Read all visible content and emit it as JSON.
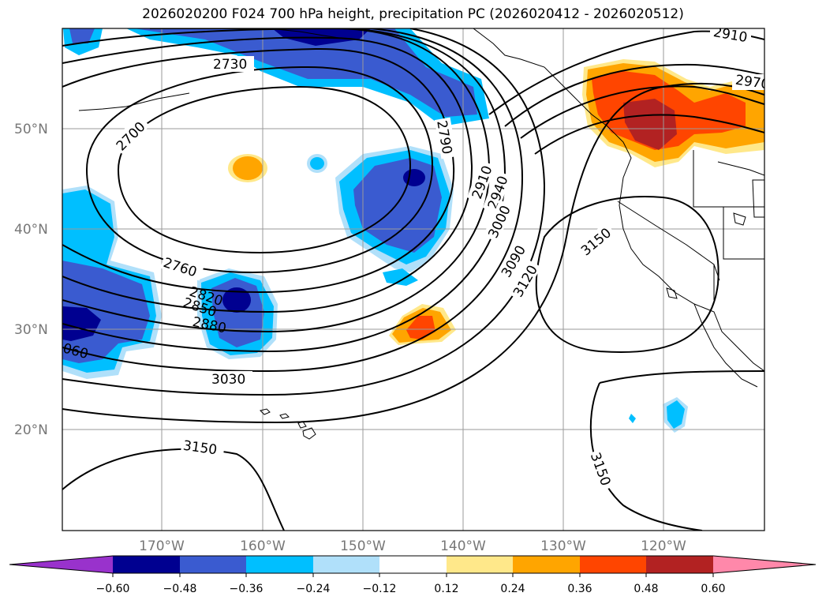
{
  "title": "2026020200 F024 700 hPa height, precipitation PC (2026020412 - 2026020512)",
  "map": {
    "lat_labels": [
      "50°N",
      "40°N",
      "30°N",
      "20°N"
    ],
    "lon_labels": [
      "170°W",
      "160°W",
      "150°W",
      "140°W",
      "130°W",
      "120°W"
    ],
    "contour_labels": [
      "2910",
      "2970",
      "2730",
      "2700",
      "2790",
      "2910",
      "2940",
      "3000",
      "3090",
      "3120",
      "3150",
      "2760",
      "2820",
      "2850",
      "2880",
      "060",
      "3030",
      "3150",
      "3150"
    ]
  },
  "colorbar": {
    "ticks": [
      "−0.60",
      "−0.48",
      "−0.36",
      "−0.24",
      "−0.12",
      "0.12",
      "0.24",
      "0.36",
      "0.48",
      "0.60"
    ],
    "colors": [
      "#9932cc",
      "#000090",
      "#3a5bd0",
      "#00bfff",
      "#b0e0fa",
      "#ffffff",
      "#ffe88a",
      "#ffa500",
      "#ff4500",
      "#b22222",
      "#ff88aa"
    ]
  }
}
